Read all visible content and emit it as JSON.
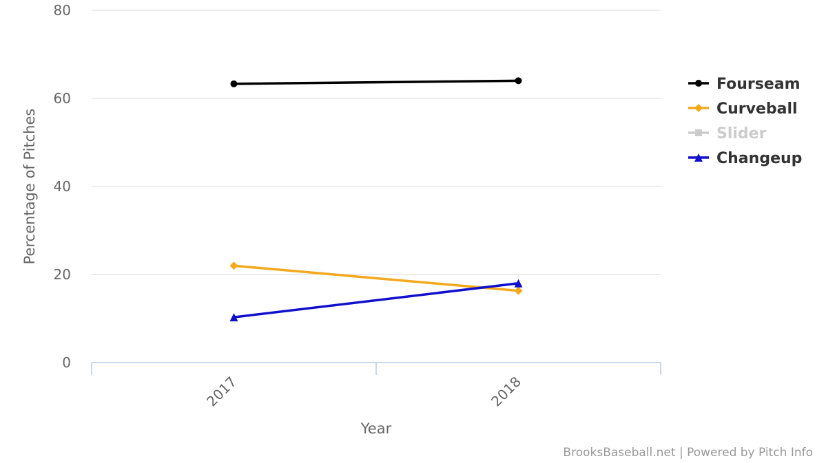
{
  "chart_data": {
    "type": "line",
    "title": "",
    "xlabel": "Year",
    "ylabel": "Percentage of Pitches",
    "categories": [
      "2017",
      "2018"
    ],
    "ylim": [
      0,
      80
    ],
    "yticks": [
      0,
      20,
      40,
      60,
      80
    ],
    "grid": true,
    "legend_position": "right",
    "series": [
      {
        "name": "Fourseam",
        "values": [
          63.3,
          64.0
        ],
        "color": "#000000",
        "marker": "circle",
        "visible": true
      },
      {
        "name": "Curveball",
        "values": [
          22.0,
          16.3
        ],
        "color": "#f4a81d",
        "marker": "diamond",
        "visible": true
      },
      {
        "name": "Slider",
        "values": [
          null,
          null
        ],
        "color": "#cccccc",
        "marker": "square",
        "visible": false
      },
      {
        "name": "Changeup",
        "values": [
          10.3,
          18.0
        ],
        "color": "#1010cc",
        "marker": "triangle",
        "visible": true
      }
    ]
  },
  "credit": "BrooksBaseball.net | Powered by Pitch Info"
}
